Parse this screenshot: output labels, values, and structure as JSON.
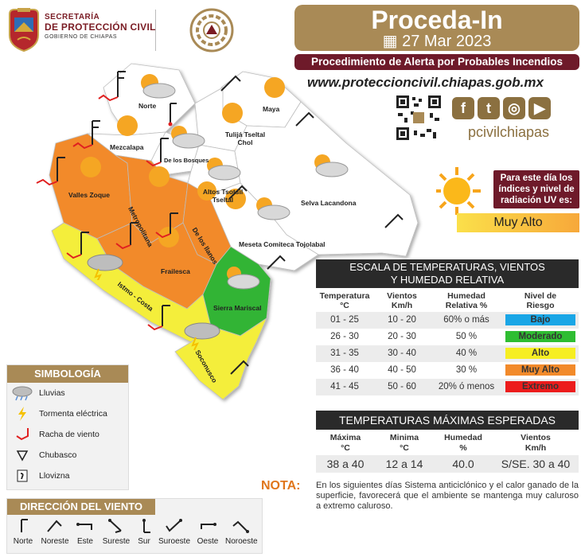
{
  "header": {
    "org_line1": "SECRETARÍA",
    "org_line2": "DE PROTECCIÓN CIVIL",
    "org_line3": "GOBIERNO DE CHIAPAS",
    "title": "Proceda-In",
    "date": "27 Mar 2023",
    "subtitle": "Procedimiento de Alerta por Probables Incendios",
    "website": "www.proteccioncivil.chiapas.gob.mx",
    "handle": "pcivilchiapas",
    "social_icons": [
      "facebook-icon",
      "twitter-icon",
      "instagram-icon",
      "youtube-icon"
    ]
  },
  "uv": {
    "text": "Para este día los índices y nivel de radiación UV es:",
    "level": "Muy Alto"
  },
  "map": {
    "regions": [
      {
        "name": "Norte",
        "color": "#ffffff"
      },
      {
        "name": "Maya",
        "color": "#ffffff"
      },
      {
        "name": "Mezcalapa",
        "color": "#ffffff"
      },
      {
        "name": "Tulijá Tseltal Chol",
        "color": "#ffffff"
      },
      {
        "name": "De los Bosques",
        "color": "#ffffff"
      },
      {
        "name": "Valles Zoque",
        "color": "#f28a2a"
      },
      {
        "name": "Metropolitana",
        "color": "#f28a2a"
      },
      {
        "name": "Altos Tsotsil Tseltal",
        "color": "#ffffff"
      },
      {
        "name": "Selva Lacandona",
        "color": "#ffffff"
      },
      {
        "name": "De los llanos",
        "color": "#f28a2a"
      },
      {
        "name": "Meseta Comiteca Tojolabal",
        "color": "#ffffff"
      },
      {
        "name": "Frailesca",
        "color": "#f28a2a"
      },
      {
        "name": "Istmo - Costa",
        "color": "#f4ee3a"
      },
      {
        "name": "Sierra Mariscal",
        "color": "#33b434"
      },
      {
        "name": "Soconusco",
        "color": "#f4ee3a"
      }
    ]
  },
  "scale": {
    "title_line1": "ESCALA DE TEMPERATURAS, VIENTOS",
    "title_line2": "Y HUMEDAD RELATIVA",
    "col_temp": "Temperatura",
    "col_temp_unit": "°C",
    "col_wind": "Vientos",
    "col_wind_unit": "Km/h",
    "col_hum": "Humedad",
    "col_hum_unit": "Relativa %",
    "col_risk": "Nivel de",
    "col_risk_unit": "Riesgo",
    "rows": [
      {
        "temp": "01 - 25",
        "wind": "10 - 20",
        "hum": "60% o más",
        "risk": "Bajo",
        "color": "#1aa6e6"
      },
      {
        "temp": "26 - 30",
        "wind": "20 - 30",
        "hum": "50 %",
        "risk": "Moderado",
        "color": "#2fbd32"
      },
      {
        "temp": "31 - 35",
        "wind": "30 - 40",
        "hum": "40 %",
        "risk": "Alto",
        "color": "#f6ee22"
      },
      {
        "temp": "36 - 40",
        "wind": "40 - 50",
        "hum": "30 %",
        "risk": "Muy Alto",
        "color": "#f28a2a"
      },
      {
        "temp": "41 - 45",
        "wind": "50 - 60",
        "hum": "20% ó menos",
        "risk": "Extremo",
        "color": "#ec1c1c"
      }
    ]
  },
  "maxtemps": {
    "title": "TEMPERATURAS MÁXIMAS ESPERADAS",
    "col_max": "Máxima",
    "col_max_unit": "°C",
    "col_min": "Minima",
    "col_min_unit": "°C",
    "col_hum": "Humedad",
    "col_hum_unit": "%",
    "col_wind": "Vientos",
    "col_wind_unit": "Km/h",
    "max": "38 a 40",
    "min": "12 a 14",
    "hum": "40.0",
    "wind": "S/SE. 30 a 40"
  },
  "nota": {
    "label": "NOTA:",
    "text": "En los siguientes días Sistema anticiclónico y el calor ganado de la superficie, favorecerá que el ambiente se mantenga muy caluroso a extremo caluroso."
  },
  "simbologia": {
    "title": "SIMBOLOGÍA",
    "items": [
      {
        "label": "Lluvias",
        "icon": "rain-cloud-icon"
      },
      {
        "label": "Tormenta eléctrica",
        "icon": "lightning-icon"
      },
      {
        "label": "Racha de viento",
        "icon": "wind-gust-icon"
      },
      {
        "label": "Chubasco",
        "icon": "shower-triangle-icon"
      },
      {
        "label": "Llovizna",
        "icon": "drizzle-icon"
      }
    ]
  },
  "direccion": {
    "title": "DIRECCIÓN DEL VIENTO",
    "items": [
      "Norte",
      "Noreste",
      "Este",
      "Sureste",
      "Sur",
      "Suroeste",
      "Oeste",
      "Noroeste"
    ]
  }
}
